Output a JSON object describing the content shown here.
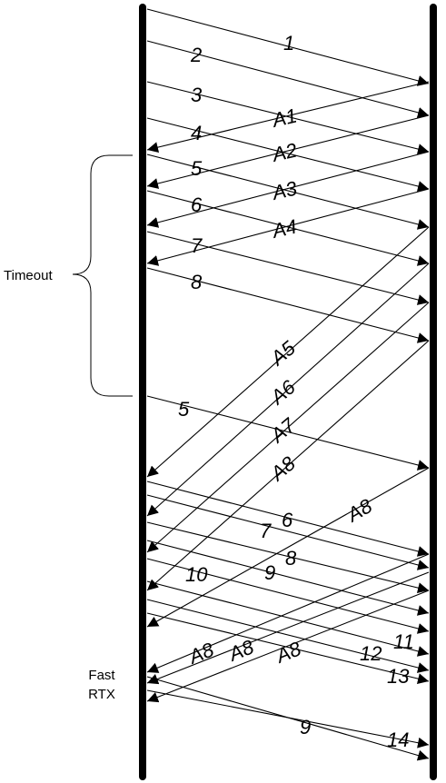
{
  "side_labels": {
    "timeout": "Timeout",
    "fast_rtx_line1": "Fast",
    "fast_rtx_line2": "RTX"
  },
  "message_labels": {
    "d1": "1",
    "d2": "2",
    "d3": "3",
    "d4": "4",
    "d5": "5",
    "d6": "6",
    "d7": "7",
    "d8": "8",
    "a1": "A1",
    "a2": "A2",
    "a3": "A3",
    "a4": "A4",
    "d5r": "5",
    "a5": "A5",
    "a6": "A6",
    "a7": "A7",
    "a8": "A8",
    "d6b": "6",
    "d7b": "7",
    "d8b": "8",
    "d9": "9",
    "d10": "10",
    "a8r": "A8",
    "a8s1": "A8",
    "a8s2": "A8",
    "a8s3": "A8",
    "d11": "11",
    "d12": "12",
    "d13": "13",
    "d14": "14",
    "d9r": "9"
  }
}
